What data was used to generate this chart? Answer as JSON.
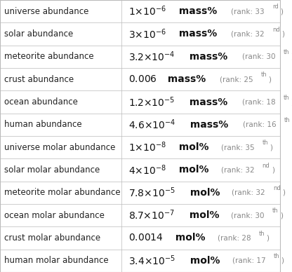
{
  "rows": [
    {
      "label": "universe abundance",
      "value_math": "$1{\\times}10^{-6}$",
      "unit": " mass%",
      "rank": "rank: 33",
      "rank_sup": "rd"
    },
    {
      "label": "solar abundance",
      "value_math": "$3{\\times}10^{-6}$",
      "unit": " mass%",
      "rank": "rank: 32",
      "rank_sup": "nd"
    },
    {
      "label": "meteorite abundance",
      "value_math": "$3.2{\\times}10^{-4}$",
      "unit": " mass%",
      "rank": "rank: 30",
      "rank_sup": "th"
    },
    {
      "label": "crust abundance",
      "value_math": "$0.006$",
      "unit": " mass%",
      "rank": "rank: 25",
      "rank_sup": "th"
    },
    {
      "label": "ocean abundance",
      "value_math": "$1.2{\\times}10^{-5}$",
      "unit": " mass%",
      "rank": "rank: 18",
      "rank_sup": "th"
    },
    {
      "label": "human abundance",
      "value_math": "$4.6{\\times}10^{-4}$",
      "unit": " mass%",
      "rank": "rank: 16",
      "rank_sup": "th"
    },
    {
      "label": "universe molar abundance",
      "value_math": "$1{\\times}10^{-8}$",
      "unit": " mol%",
      "rank": "rank: 35",
      "rank_sup": "th"
    },
    {
      "label": "solar molar abundance",
      "value_math": "$4{\\times}10^{-8}$",
      "unit": " mol%",
      "rank": "rank: 32",
      "rank_sup": "nd"
    },
    {
      "label": "meteorite molar abundance",
      "value_math": "$7.8{\\times}10^{-5}$",
      "unit": " mol%",
      "rank": "rank: 32",
      "rank_sup": "nd"
    },
    {
      "label": "ocean molar abundance",
      "value_math": "$8.7{\\times}10^{-7}$",
      "unit": " mol%",
      "rank": "rank: 30",
      "rank_sup": "th"
    },
    {
      "label": "crust molar abundance",
      "value_math": "$0.0014$",
      "unit": " mol%",
      "rank": "rank: 28",
      "rank_sup": "th"
    },
    {
      "label": "human molar abundance",
      "value_math": "$3.4{\\times}10^{-5}$",
      "unit": " mol%",
      "rank": "rank: 17",
      "rank_sup": "th"
    }
  ],
  "col_split": 0.435,
  "bg_color": "#ffffff",
  "border_color": "#bbbbbb",
  "label_fontsize": 8.5,
  "value_fontsize": 10.0,
  "unit_fontsize": 10.0,
  "rank_fontsize": 7.5,
  "label_color": "#222222",
  "value_color": "#111111",
  "rank_color": "#888888"
}
